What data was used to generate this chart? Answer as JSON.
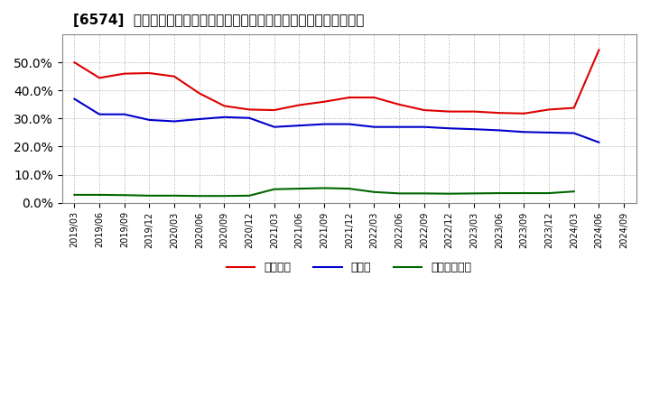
{
  "title": "[6574]  自己資本、のれん、繰延税金資産の総資産に対する比率の推移",
  "x_labels": [
    "2019/03",
    "2019/06",
    "2019/09",
    "2019/12",
    "2020/03",
    "2020/06",
    "2020/09",
    "2020/12",
    "2021/03",
    "2021/06",
    "2021/09",
    "2021/12",
    "2022/03",
    "2022/06",
    "2022/09",
    "2022/12",
    "2023/03",
    "2023/06",
    "2023/09",
    "2023/12",
    "2024/03",
    "2024/06",
    "2024/09"
  ],
  "jiko_shihon": [
    0.5,
    0.445,
    0.46,
    0.462,
    0.45,
    0.39,
    0.345,
    0.332,
    0.33,
    0.348,
    0.36,
    0.375,
    0.375,
    0.35,
    0.33,
    0.325,
    0.325,
    0.32,
    0.318,
    0.332,
    0.338,
    0.545,
    null
  ],
  "noren": [
    0.37,
    0.315,
    0.315,
    0.295,
    0.29,
    0.298,
    0.305,
    0.302,
    0.27,
    0.275,
    0.28,
    0.28,
    0.27,
    0.27,
    0.27,
    0.265,
    0.262,
    0.258,
    0.252,
    0.25,
    0.248,
    0.215,
    null
  ],
  "kurinobe_zeikin": [
    0.028,
    0.028,
    0.027,
    0.025,
    0.025,
    0.024,
    0.024,
    0.025,
    0.048,
    0.05,
    0.052,
    0.05,
    0.038,
    0.033,
    0.033,
    0.032,
    0.033,
    0.034,
    0.034,
    0.034,
    0.04,
    null,
    null
  ],
  "line_colors": [
    "#dd0000",
    "#0000cc",
    "#006600"
  ],
  "legend_labels": [
    "自己資本",
    "のれん",
    "繰延税金資産"
  ],
  "bg_color": "#ffffff",
  "plot_bg_color": "#ffffff",
  "grid_color": "#aaaaaa",
  "ylim": [
    0.0,
    0.6
  ],
  "yticks": [
    0.0,
    0.1,
    0.2,
    0.3,
    0.4,
    0.5
  ]
}
